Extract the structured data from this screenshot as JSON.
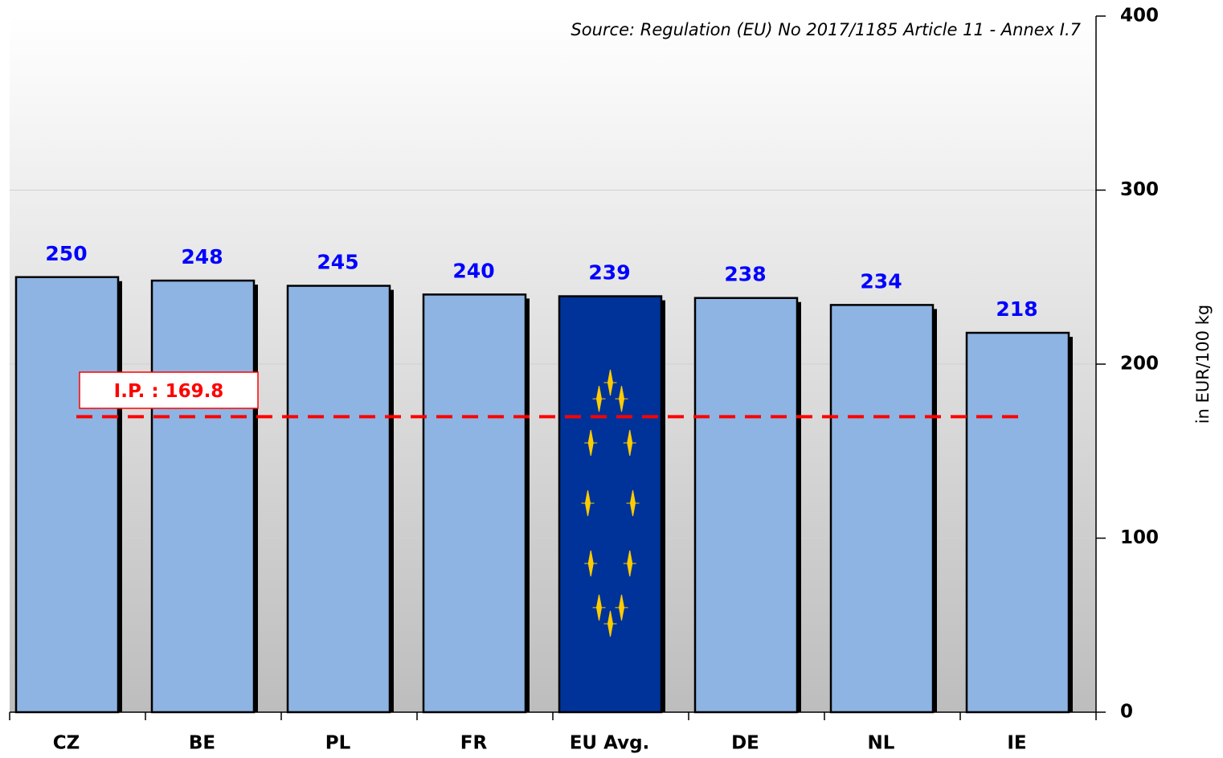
{
  "chart_data": {
    "type": "bar",
    "source": "Source: Regulation (EU) No 2017/1185 Article 11 - Annex I.7",
    "y_axis_label": "in EUR/100 kg",
    "categories": [
      "CZ",
      "BE",
      "PL",
      "FR",
      "EU Avg.",
      "DE",
      "NL",
      "IE"
    ],
    "values": [
      250,
      248,
      245,
      240,
      239,
      238,
      234,
      218
    ],
    "colors": [
      "#8eb4e3",
      "#8eb4e3",
      "#8eb4e3",
      "#8eb4e3",
      "#003399",
      "#8eb4e3",
      "#8eb4e3",
      "#8eb4e3"
    ],
    "ylim": [
      0,
      400
    ],
    "yticks": [
      0,
      100,
      200,
      300,
      400
    ],
    "grid": true,
    "reference_line": {
      "label": "I.P. :",
      "value": 169.8,
      "color": "#ff0000"
    }
  }
}
